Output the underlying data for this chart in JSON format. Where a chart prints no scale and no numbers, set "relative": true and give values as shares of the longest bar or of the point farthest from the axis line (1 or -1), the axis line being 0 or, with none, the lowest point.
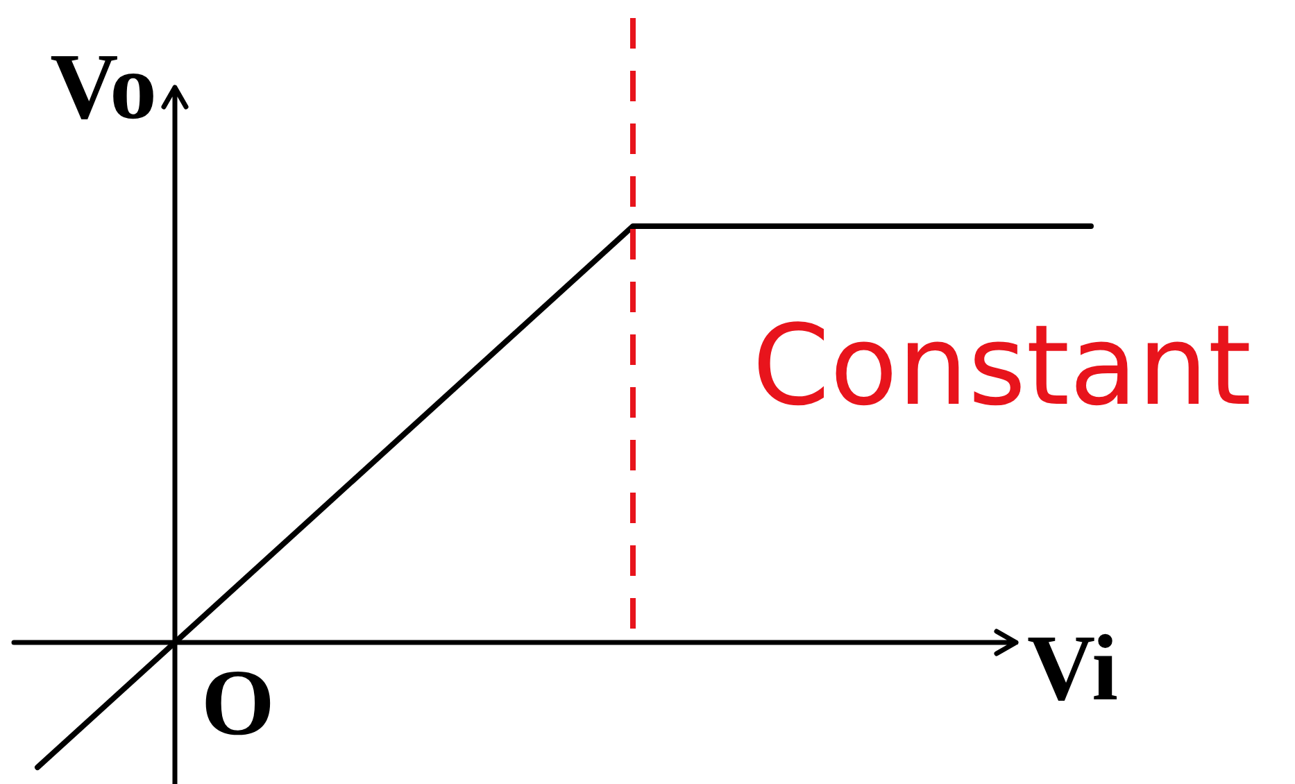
{
  "chart_data": {
    "type": "line",
    "relative": true,
    "xlabel": "Vi",
    "ylabel": "Vo",
    "categories": [
      null,
      null,
      null,
      null,
      null,
      null,
      null,
      null,
      null,
      null,
      null,
      null,
      null,
      null,
      null,
      null,
      null,
      null,
      null,
      null,
      null,
      null,
      null,
      null
    ],
    "values": [
      -0.3,
      -0.2,
      -0.1,
      0,
      0.1,
      0.2,
      0.3,
      0.4,
      0.5,
      0.6,
      0.7,
      0.8,
      0.9,
      1,
      1,
      1,
      1,
      1,
      1,
      1,
      1,
      1,
      1,
      1
    ],
    "color": "#000000",
    "annotations": [
      "O",
      "Constant"
    ]
  }
}
